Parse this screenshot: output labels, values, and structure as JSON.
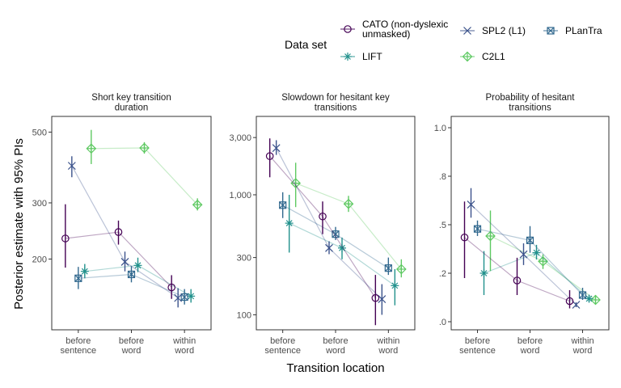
{
  "chart_data": {
    "type": "line",
    "ylabel": "Posterior estimate with 95% PIs",
    "xlabel": "Transition location",
    "categories": [
      "before sentence",
      "before word",
      "within word"
    ],
    "legend": {
      "title": "Data set",
      "placement": "top",
      "entries": [
        {
          "name": "CATO (non-dyslexic unmasked)",
          "lines": [
            "CATO (non-dyslexic",
            "unmasked)"
          ],
          "color": "#440154",
          "shape": "circle"
        },
        {
          "name": "SPL2 (L1)",
          "lines": [
            "SPL2 (L1)"
          ],
          "color": "#3b528b",
          "shape": "cross"
        },
        {
          "name": "PLanTra",
          "lines": [
            "PLanTra"
          ],
          "color": "#31688e",
          "shape": "squarecross"
        },
        {
          "name": "LIFT",
          "lines": [
            "LIFT"
          ],
          "color": "#21918c",
          "shape": "asterisk"
        },
        {
          "name": "C2L1",
          "lines": [
            "C2L1"
          ],
          "color": "#5ec962",
          "shape": "diamond"
        }
      ]
    },
    "facets": [
      {
        "title_lines": [
          "Short key transition",
          "duration"
        ],
        "scale": "log",
        "ylim": [
          120,
          560
        ],
        "ticks": [
          200,
          300,
          500
        ],
        "tick_labels": [
          "200",
          "300",
          "500"
        ],
        "series": [
          {
            "name": "CATO (non-dyslexic unmasked)",
            "y": [
              232,
              243,
              163
            ],
            "lo": [
              188,
              222,
              150
            ],
            "hi": [
              297,
              264,
              178
            ]
          },
          {
            "name": "SPL2 (L1)",
            "y": [
              392,
              196,
              151
            ],
            "lo": [
              361,
              183,
              141
            ],
            "hi": [
              420,
              211,
              162
            ]
          },
          {
            "name": "PLanTra",
            "y": [
              174,
              179,
              152
            ],
            "lo": [
              161,
              169,
              144
            ],
            "hi": [
              189,
              190,
              161
            ]
          },
          {
            "name": "LIFT",
            "y": [
              183,
              191,
              153
            ],
            "lo": [
              174,
              182,
              146
            ],
            "hi": [
              193,
              202,
              161
            ]
          },
          {
            "name": "C2L1",
            "y": [
              444,
              446,
              296
            ],
            "lo": [
              397,
              428,
              284
            ],
            "hi": [
              508,
              465,
              310
            ]
          }
        ]
      },
      {
        "title_lines": [
          "Slowdown for hesitant key",
          "transitions"
        ],
        "scale": "log",
        "ylim": [
          75,
          4500
        ],
        "ticks": [
          100,
          300,
          1000,
          3000
        ],
        "tick_labels": [
          "100",
          "300",
          "1,000",
          "3,000"
        ],
        "series": [
          {
            "name": "CATO (non-dyslexic unmasked)",
            "y": [
              2100,
              660,
              138
            ],
            "lo": [
              1400,
              470,
              82
            ],
            "hi": [
              2950,
              880,
              215
            ]
          },
          {
            "name": "SPL2 (L1)",
            "y": [
              2450,
              360,
              135
            ],
            "lo": [
              2150,
              320,
              100
            ],
            "hi": [
              2850,
              410,
              180
            ]
          },
          {
            "name": "PLanTra",
            "y": [
              820,
              470,
              245
            ],
            "lo": [
              640,
              420,
              215
            ],
            "hi": [
              1050,
              540,
              300
            ]
          },
          {
            "name": "LIFT",
            "y": [
              580,
              360,
              175
            ],
            "lo": [
              330,
              290,
              120
            ],
            "hi": [
              1000,
              440,
              240
            ]
          },
          {
            "name": "C2L1",
            "y": [
              1250,
              840,
              240
            ],
            "lo": [
              790,
              720,
              205
            ],
            "hi": [
              1850,
              980,
              290
            ]
          }
        ]
      },
      {
        "title_lines": [
          "Probability of hesitant",
          "transitions"
        ],
        "scale": "logit",
        "ylim": [
          0,
          1
        ],
        "ticks": [
          0.0,
          0.2,
          0.5,
          0.8,
          1.0
        ],
        "tick_labels": [
          ".0",
          ".2",
          ".5",
          ".8",
          "1.0"
        ],
        "series": [
          {
            "name": "CATO (non-dyslexic unmasked)",
            "y": [
              0.41,
              0.17,
              0.085
            ],
            "lo": [
              0.18,
              0.11,
              0.055
            ],
            "hi": [
              0.66,
              0.28,
              0.13
            ]
          },
          {
            "name": "SPL2 (L1)",
            "y": [
              0.64,
              0.3,
              0.07
            ],
            "lo": [
              0.55,
              0.24,
              0.06
            ],
            "hi": [
              0.74,
              0.37,
              0.08
            ]
          },
          {
            "name": "PLanTra",
            "y": [
              0.47,
              0.39,
              0.11
            ],
            "lo": [
              0.42,
              0.31,
              0.09
            ],
            "hi": [
              0.53,
              0.49,
              0.14
            ]
          },
          {
            "name": "LIFT",
            "y": [
              0.2,
              0.31,
              0.095
            ],
            "lo": [
              0.11,
              0.27,
              0.08
            ],
            "hi": [
              0.32,
              0.36,
              0.11
            ]
          },
          {
            "name": "C2L1",
            "y": [
              0.42,
              0.26,
              0.09
            ],
            "lo": [
              0.21,
              0.22,
              0.075
            ],
            "hi": [
              0.6,
              0.3,
              0.11
            ]
          }
        ]
      }
    ]
  }
}
